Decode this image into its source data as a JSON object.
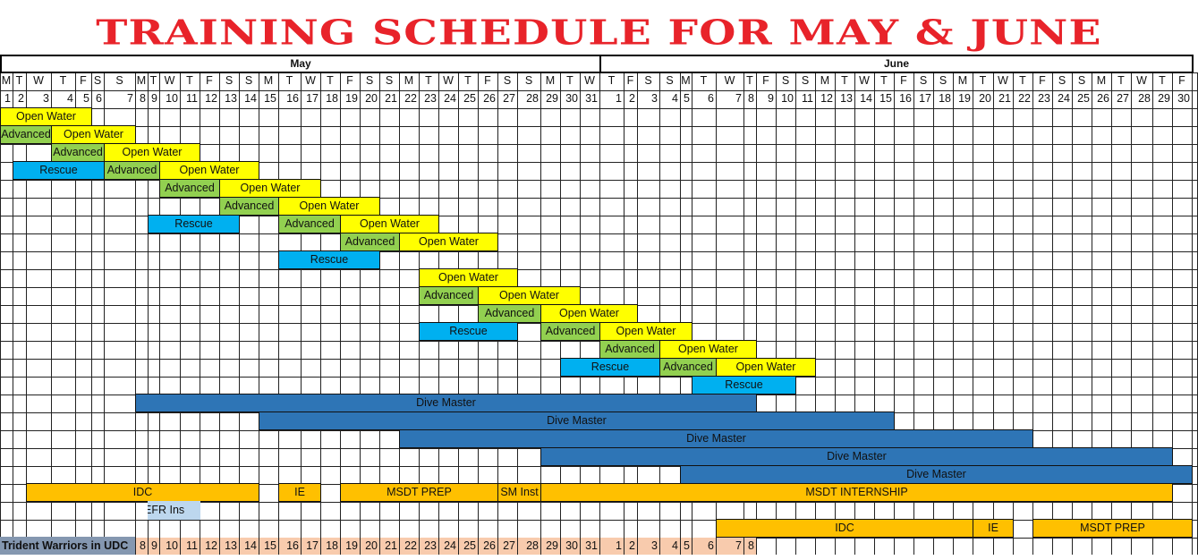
{
  "title": "TRAINING SCHEDULE FOR MAY & JUNE",
  "months": [
    {
      "name": "May",
      "letters": [
        "M",
        "T",
        "W",
        "T",
        "F",
        "S",
        "S",
        "M",
        "T",
        "W",
        "T",
        "F",
        "S",
        "S",
        "M",
        "T",
        "W",
        "T",
        "F",
        "S",
        "S",
        "M",
        "T",
        "W",
        "T",
        "F",
        "S",
        "S",
        "M",
        "T",
        "W"
      ],
      "days": [
        "1",
        "2",
        "3",
        "4",
        "5",
        "6",
        "7",
        "8",
        "9",
        "10",
        "11",
        "12",
        "13",
        "14",
        "15",
        "16",
        "17",
        "18",
        "19",
        "20",
        "21",
        "22",
        "23",
        "24",
        "25",
        "26",
        "27",
        "28",
        "29",
        "30",
        "31"
      ]
    },
    {
      "name": "June",
      "letters": [
        "T",
        "F",
        "S",
        "S",
        "M",
        "T",
        "W",
        "T",
        "F",
        "S",
        "S",
        "M",
        "T",
        "W",
        "T",
        "F",
        "S",
        "S",
        "M",
        "T",
        "W",
        "T",
        "F",
        "S",
        "S",
        "M",
        "T",
        "W",
        "T",
        "F"
      ],
      "days": [
        "1",
        "2",
        "3",
        "4",
        "5",
        "6",
        "7",
        "8",
        "9",
        "10",
        "11",
        "12",
        "13",
        "14",
        "15",
        "16",
        "17",
        "18",
        "19",
        "20",
        "21",
        "22",
        "23",
        "24",
        "25",
        "26",
        "27",
        "28",
        "29",
        "30"
      ]
    }
  ],
  "colors": {
    "Open Water": "#FFFF00",
    "Advanced": "#92D050",
    "Rescue": "#00B0F0",
    "Dive Master": "#2E75B6",
    "Instructor": "#FFC000",
    "EFR": "#BDD7EE",
    "trident_label": "#8497B0",
    "trident_days": "#F8CBAD",
    "title": "#E8232A"
  },
  "bars": [
    {
      "row": 1,
      "label": "Open Water",
      "kind": "Open Water",
      "start": "May 1",
      "end": "May 5"
    },
    {
      "row": 2,
      "label": "Advanced",
      "kind": "Advanced",
      "start": "May 1",
      "end": "May 3"
    },
    {
      "row": 2,
      "label": "Open Water",
      "kind": "Open Water",
      "start": "May 4",
      "end": "May 7"
    },
    {
      "row": 3,
      "label": "Advanced",
      "kind": "Advanced",
      "start": "May 4",
      "end": "May 6"
    },
    {
      "row": 3,
      "label": "Open Water",
      "kind": "Open Water",
      "start": "May 7",
      "end": "May 11"
    },
    {
      "row": 4,
      "label": "Rescue",
      "kind": "Rescue",
      "start": "May 2",
      "end": "May 6"
    },
    {
      "row": 4,
      "label": "Advanced",
      "kind": "Advanced",
      "start": "May 7",
      "end": "May 9"
    },
    {
      "row": 4,
      "label": "Open Water",
      "kind": "Open Water",
      "start": "May 10",
      "end": "May 14"
    },
    {
      "row": 5,
      "label": "Advanced",
      "kind": "Advanced",
      "start": "May 10",
      "end": "May 12"
    },
    {
      "row": 5,
      "label": "Open Water",
      "kind": "Open Water",
      "start": "May 13",
      "end": "May 17"
    },
    {
      "row": 6,
      "label": "Advanced",
      "kind": "Advanced",
      "start": "May 13",
      "end": "May 15"
    },
    {
      "row": 6,
      "label": "Open Water",
      "kind": "Open Water",
      "start": "May 16",
      "end": "May 20"
    },
    {
      "row": 7,
      "label": "Rescue",
      "kind": "Rescue",
      "start": "May 9",
      "end": "May 13"
    },
    {
      "row": 7,
      "label": "Advanced",
      "kind": "Advanced",
      "start": "May 16",
      "end": "May 18"
    },
    {
      "row": 7,
      "label": "Open Water",
      "kind": "Open Water",
      "start": "May 19",
      "end": "May 23"
    },
    {
      "row": 8,
      "label": "Advanced",
      "kind": "Advanced",
      "start": "May 19",
      "end": "May 21"
    },
    {
      "row": 8,
      "label": "Open Water",
      "kind": "Open Water",
      "start": "May 22",
      "end": "May 26"
    },
    {
      "row": 9,
      "label": "Rescue",
      "kind": "Rescue",
      "start": "May 16",
      "end": "May 20"
    },
    {
      "row": 10,
      "label": "Open Water",
      "kind": "Open Water",
      "start": "May 23",
      "end": "May 27"
    },
    {
      "row": 11,
      "label": "Advanced",
      "kind": "Advanced",
      "start": "May 23",
      "end": "May 25"
    },
    {
      "row": 11,
      "label": "Open Water",
      "kind": "Open Water",
      "start": "May 26",
      "end": "May 30"
    },
    {
      "row": 12,
      "label": "Advanced",
      "kind": "Advanced",
      "start": "May 26",
      "end": "May 28"
    },
    {
      "row": 12,
      "label": "Open Water",
      "kind": "Open Water",
      "start": "May 29",
      "end": "June 2"
    },
    {
      "row": 13,
      "label": "Rescue",
      "kind": "Rescue",
      "start": "May 23",
      "end": "May 27"
    },
    {
      "row": 13,
      "label": "Advanced",
      "kind": "Advanced",
      "start": "May 29",
      "end": "May 31"
    },
    {
      "row": 13,
      "label": "Open Water",
      "kind": "Open Water",
      "start": "June 1",
      "end": "June 5"
    },
    {
      "row": 14,
      "label": "Advanced",
      "kind": "Advanced",
      "start": "June 1",
      "end": "June 3"
    },
    {
      "row": 14,
      "label": "Open Water",
      "kind": "Open Water",
      "start": "June 4",
      "end": "June 8"
    },
    {
      "row": 15,
      "label": "Rescue",
      "kind": "Rescue",
      "start": "May 30",
      "end": "June 3"
    },
    {
      "row": 15,
      "label": "Advanced",
      "kind": "Advanced",
      "start": "June 4",
      "end": "June 6"
    },
    {
      "row": 15,
      "label": "Open Water",
      "kind": "Open Water",
      "start": "June 7",
      "end": "June 11"
    },
    {
      "row": 16,
      "label": "Rescue",
      "kind": "Rescue",
      "start": "June 6",
      "end": "June 10"
    },
    {
      "row": 17,
      "label": "Dive Master",
      "kind": "Dive Master",
      "start": "May 8",
      "end": "June 8"
    },
    {
      "row": 18,
      "label": "Dive Master",
      "kind": "Dive Master",
      "start": "May 15",
      "end": "June 15"
    },
    {
      "row": 19,
      "label": "Dive Master",
      "kind": "Dive Master",
      "start": "May 22",
      "end": "June 22"
    },
    {
      "row": 20,
      "label": "Dive Master",
      "kind": "Dive Master",
      "start": "May 29",
      "end": "June 29"
    },
    {
      "row": 21,
      "label": "Dive Master",
      "kind": "Dive Master",
      "start": "June 5",
      "end": "June 30"
    },
    {
      "row": 22,
      "label": "IDC",
      "kind": "Instructor",
      "start": "May 3",
      "end": "May 14"
    },
    {
      "row": 22,
      "label": "IE",
      "kind": "Instructor",
      "start": "May 16",
      "end": "May 17"
    },
    {
      "row": 22,
      "label": "MSDT PREP",
      "kind": "Instructor",
      "start": "May 19",
      "end": "May 26"
    },
    {
      "row": 22,
      "label": "SM Inst",
      "kind": "Instructor",
      "start": "May 27",
      "end": "May 28"
    },
    {
      "row": 22,
      "label": "MSDT INTERNSHIP",
      "kind": "Instructor",
      "start": "May 29",
      "end": "June 29"
    },
    {
      "row": 23,
      "label": "EFR Ins",
      "kind": "EFR",
      "start": "May 9",
      "end": "May 11"
    },
    {
      "row": 24,
      "label": "IDC",
      "kind": "Instructor",
      "start": "June 7",
      "end": "June 19"
    },
    {
      "row": 24,
      "label": "IE",
      "kind": "Instructor",
      "start": "June 20",
      "end": "June 21"
    },
    {
      "row": 24,
      "label": "MSDT PREP",
      "kind": "Instructor",
      "start": "June 23",
      "end": "June 30"
    }
  ],
  "trident": {
    "label": "Trident Warriors in UDC",
    "start": "May 8",
    "end": "June 8",
    "numbers": [
      "8",
      "9",
      "10",
      "11",
      "12",
      "13",
      "14",
      "15",
      "16",
      "17",
      "18",
      "19",
      "20",
      "21",
      "22",
      "23",
      "24",
      "25",
      "26",
      "27",
      "28",
      "29",
      "30",
      "31",
      "1",
      "2",
      "3",
      "4",
      "5",
      "6",
      "7",
      "8"
    ]
  }
}
